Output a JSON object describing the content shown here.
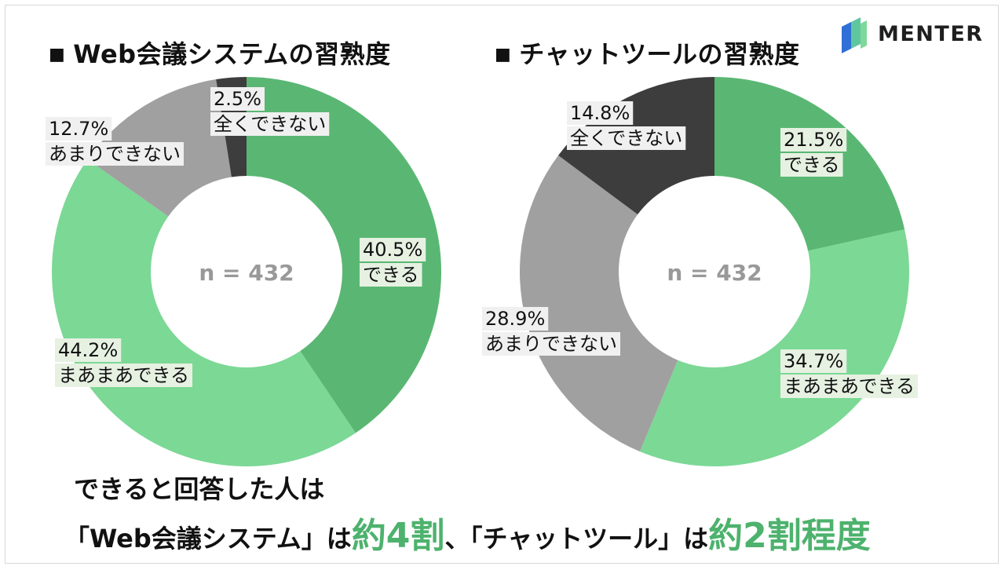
{
  "brand": {
    "name": "MENTER"
  },
  "chart_data": [
    {
      "type": "pie",
      "title": "Web会議システムの習熟度",
      "center_label": "n = 432",
      "slices": [
        {
          "pct": "40.5%",
          "label": "できる",
          "value": 40.5,
          "color": "#5ab773"
        },
        {
          "pct": "44.2%",
          "label": "まあまあできる",
          "value": 44.2,
          "color": "#7bd895"
        },
        {
          "pct": "12.7%",
          "label": "あまりできない",
          "value": 12.7,
          "color": "#a0a0a0"
        },
        {
          "pct": "2.5%",
          "label": "全くできない",
          "value": 2.5,
          "color": "#3d3d3d"
        }
      ]
    },
    {
      "type": "pie",
      "title": "チャットツールの習熟度",
      "center_label": "n = 432",
      "slices": [
        {
          "pct": "21.5%",
          "label": "できる",
          "value": 21.5,
          "color": "#5ab773"
        },
        {
          "pct": "34.7%",
          "label": "まあまあできる",
          "value": 34.7,
          "color": "#7bd895"
        },
        {
          "pct": "28.9%",
          "label": "あまりできない",
          "value": 28.9,
          "color": "#a0a0a0"
        },
        {
          "pct": "14.8%",
          "label": "全くできない",
          "value": 14.8,
          "color": "#3d3d3d"
        }
      ]
    }
  ],
  "conclusion": {
    "line1": "できると回答した人は",
    "line2": {
      "part1": "「Web会議システム」は",
      "highlight1": "約4割",
      "part2": "、「チャットツール」は",
      "highlight2": "約2割程度"
    }
  },
  "colors": {
    "accent": "#4db26d",
    "label_bg_green": "#e6f1e2",
    "label_bg_gray": "#f0f0f0"
  }
}
